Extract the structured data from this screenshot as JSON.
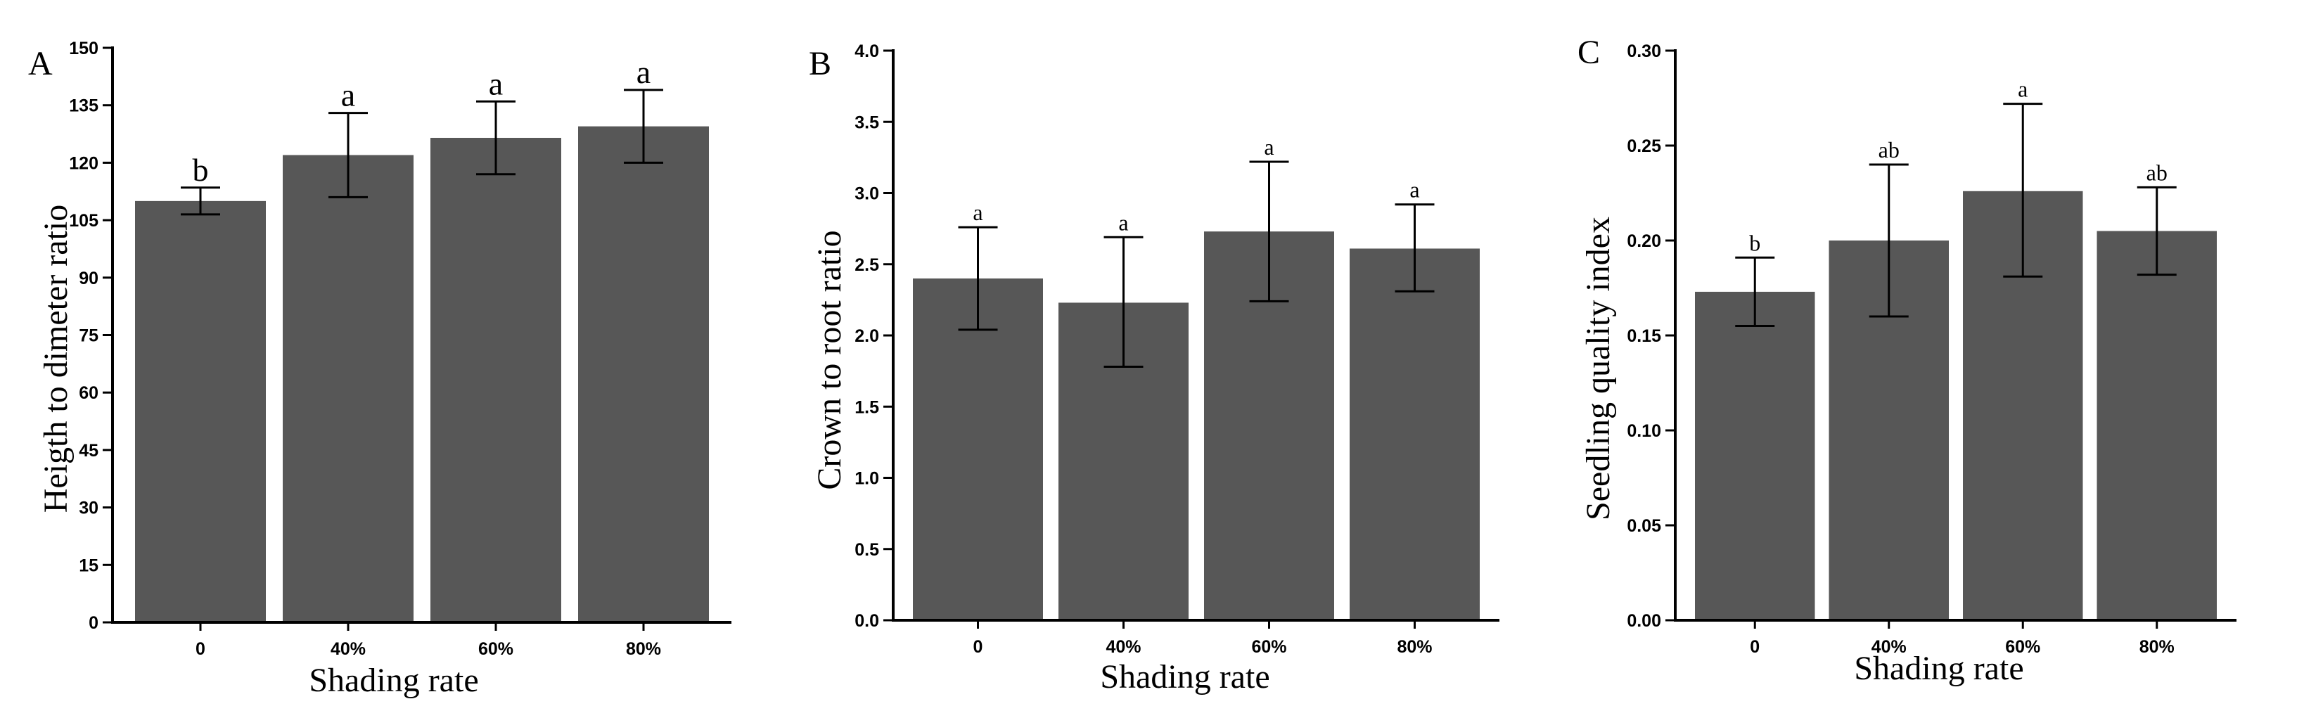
{
  "colors": {
    "bar": "#575757",
    "axis": "#000000",
    "background": "#ffffff"
  },
  "chart_data": [
    {
      "type": "bar",
      "panel_label": "A",
      "title": "",
      "xlabel": "Shading rate",
      "ylabel": "Heigth to dimeter ratio",
      "categories": [
        "0",
        "40%",
        "60%",
        "80%"
      ],
      "values": [
        110,
        122,
        126.5,
        129.5
      ],
      "error_low": [
        106.5,
        111,
        117,
        120
      ],
      "error_high": [
        113.5,
        133,
        136,
        139
      ],
      "significance": [
        "b",
        "a",
        "a",
        "a"
      ],
      "ylim": [
        0,
        150
      ],
      "yticks": [
        "0",
        "15",
        "30",
        "45",
        "60",
        "75",
        "90",
        "105",
        "120",
        "135",
        "150"
      ]
    },
    {
      "type": "bar",
      "panel_label": "B",
      "title": "",
      "xlabel": "Shading rate",
      "ylabel": "Crown to root ratio",
      "categories": [
        "0",
        "40%",
        "60%",
        "80%"
      ],
      "values": [
        2.4,
        2.23,
        2.73,
        2.61
      ],
      "error_low": [
        2.04,
        1.78,
        2.24,
        2.31
      ],
      "error_high": [
        2.76,
        2.69,
        3.22,
        2.92
      ],
      "significance": [
        "a",
        "a",
        "a",
        "a"
      ],
      "ylim": [
        0,
        4.0
      ],
      "yticks": [
        "0.0",
        "0.5",
        "1.0",
        "1.5",
        "2.0",
        "2.5",
        "3.0",
        "3.5",
        "4.0"
      ]
    },
    {
      "type": "bar",
      "panel_label": "C",
      "title": "",
      "xlabel": "Shading rate",
      "ylabel": "Seedling quality index",
      "categories": [
        "0",
        "40%",
        "60%",
        "80%"
      ],
      "values": [
        0.173,
        0.2,
        0.226,
        0.205
      ],
      "error_low": [
        0.155,
        0.16,
        0.181,
        0.182
      ],
      "error_high": [
        0.191,
        0.24,
        0.272,
        0.228
      ],
      "significance": [
        "b",
        "ab",
        "a",
        "ab"
      ],
      "ylim": [
        0,
        0.3
      ],
      "yticks": [
        "0.00",
        "0.05",
        "0.10",
        "0.15",
        "0.20",
        "0.25",
        "0.30"
      ]
    }
  ]
}
